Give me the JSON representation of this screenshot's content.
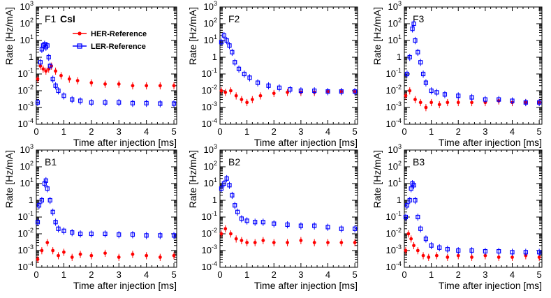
{
  "figure": {
    "x_label": "Time after injection [ms]",
    "y_label": "Rate [Hz/mA]",
    "detector_label": "CsI",
    "legend": [
      {
        "label": "HER-Reference",
        "color": "#ff0000",
        "marker": "filled-circle"
      },
      {
        "label": "LER-Reference",
        "color": "#0000ff",
        "marker": "open-square"
      }
    ],
    "x_ticks": [
      "0",
      "1",
      "2",
      "3",
      "4",
      "5"
    ],
    "y_ticks": [
      "10",
      "10",
      "10",
      "10",
      "1",
      "10",
      "10",
      "10",
      "10"
    ],
    "y_tick_exps": [
      "-4",
      "-3",
      "-2",
      "-1",
      "",
      "1",
      "2",
      "3",
      ""
    ]
  },
  "chart_data": [
    {
      "type": "scatter",
      "panel": "F1",
      "xlim": [
        0,
        5.1
      ],
      "ylim": [
        0.0001,
        1000
      ],
      "y_scale": "log",
      "series": [
        {
          "name": "HER-Reference",
          "color": "#ff0000",
          "marker": "filled-circle",
          "x": [
            0.05,
            0.15,
            0.25,
            0.35,
            0.45,
            0.55,
            0.7,
            0.9,
            1.2,
            1.5,
            2.0,
            2.5,
            3.0,
            3.5,
            4.0,
            4.5,
            5.0
          ],
          "y": [
            0.05,
            0.3,
            0.2,
            0.15,
            0.2,
            0.3,
            0.15,
            0.08,
            0.05,
            0.04,
            0.03,
            0.025,
            0.025,
            0.02,
            0.02,
            0.02,
            0.02
          ]
        },
        {
          "name": "LER-Reference",
          "color": "#0000ff",
          "marker": "open-square",
          "x": [
            0.05,
            0.15,
            0.2,
            0.25,
            0.3,
            0.35,
            0.4,
            0.45,
            0.5,
            0.6,
            0.7,
            0.8,
            1.0,
            1.3,
            1.6,
            2.0,
            2.5,
            3.0,
            3.5,
            4.0,
            4.5,
            5.0
          ],
          "y": [
            0.002,
            0.5,
            3,
            5,
            6,
            4,
            5,
            1,
            0.3,
            0.05,
            0.02,
            0.01,
            0.005,
            0.003,
            0.0025,
            0.002,
            0.002,
            0.002,
            0.0018,
            0.0018,
            0.0017,
            0.0017
          ]
        }
      ]
    },
    {
      "type": "scatter",
      "panel": "F2",
      "xlim": [
        0,
        5.1
      ],
      "ylim": [
        0.0001,
        1000
      ],
      "y_scale": "log",
      "series": [
        {
          "name": "HER-Reference",
          "color": "#ff0000",
          "marker": "filled-circle",
          "x": [
            0.05,
            0.2,
            0.4,
            0.6,
            0.8,
            1.0,
            1.2,
            1.5,
            2.0,
            2.5,
            3.0,
            3.5,
            4.0,
            4.5,
            5.0
          ],
          "y": [
            0.01,
            0.008,
            0.01,
            0.005,
            0.003,
            0.002,
            0.003,
            0.005,
            0.007,
            0.008,
            0.008,
            0.008,
            0.009,
            0.009,
            0.009
          ]
        },
        {
          "name": "LER-Reference",
          "color": "#0000ff",
          "marker": "open-square",
          "x": [
            0.05,
            0.15,
            0.25,
            0.35,
            0.45,
            0.55,
            0.7,
            0.9,
            1.1,
            1.4,
            1.8,
            2.2,
            2.6,
            3.0,
            3.5,
            4.0,
            4.5,
            5.0
          ],
          "y": [
            8,
            20,
            10,
            5,
            2,
            0.5,
            0.2,
            0.1,
            0.06,
            0.03,
            0.02,
            0.015,
            0.012,
            0.01,
            0.01,
            0.009,
            0.009,
            0.009
          ]
        }
      ]
    },
    {
      "type": "scatter",
      "panel": "F3",
      "xlim": [
        0,
        5.1
      ],
      "ylim": [
        0.0001,
        1000
      ],
      "y_scale": "log",
      "series": [
        {
          "name": "HER-Reference",
          "color": "#ff0000",
          "marker": "filled-circle",
          "x": [
            0.05,
            0.2,
            0.4,
            0.6,
            0.8,
            1.0,
            1.3,
            1.6,
            2.0,
            2.5,
            3.0,
            3.5,
            4.0,
            4.5,
            5.0
          ],
          "y": [
            0.005,
            0.01,
            0.003,
            0.002,
            0.001,
            0.002,
            0.0015,
            0.002,
            0.002,
            0.002,
            0.002,
            0.0025,
            0.002,
            0.002,
            0.002
          ]
        },
        {
          "name": "LER-Reference",
          "color": "#0000ff",
          "marker": "open-square",
          "x": [
            0.1,
            0.2,
            0.3,
            0.35,
            0.4,
            0.5,
            0.6,
            0.7,
            0.8,
            1.0,
            1.2,
            1.5,
            2.0,
            2.5,
            3.0,
            3.5,
            4.0,
            4.5,
            5.0
          ],
          "y": [
            0.1,
            1,
            50,
            100,
            10,
            2,
            0.5,
            0.1,
            0.03,
            0.01,
            0.008,
            0.006,
            0.005,
            0.004,
            0.003,
            0.003,
            0.0025,
            0.002,
            0.002
          ]
        }
      ]
    },
    {
      "type": "scatter",
      "panel": "B1",
      "xlim": [
        0,
        5.1
      ],
      "ylim": [
        0.0001,
        1000
      ],
      "y_scale": "log",
      "series": [
        {
          "name": "HER-Reference",
          "color": "#ff0000",
          "marker": "filled-circle",
          "x": [
            0.05,
            0.2,
            0.4,
            0.6,
            0.8,
            1.0,
            1.3,
            1.6,
            2.0,
            2.5,
            3.0,
            3.5,
            4.0,
            4.5,
            5.0
          ],
          "y": [
            0.0003,
            0.001,
            0.003,
            0.001,
            0.0005,
            0.0008,
            0.0004,
            0.0006,
            0.0005,
            0.0007,
            0.0004,
            0.0006,
            0.0005,
            0.0004,
            0.0005
          ]
        },
        {
          "name": "LER-Reference",
          "color": "#0000ff",
          "marker": "open-square",
          "x": [
            0.05,
            0.1,
            0.2,
            0.3,
            0.35,
            0.4,
            0.5,
            0.6,
            0.7,
            0.8,
            1.0,
            1.3,
            1.6,
            2.0,
            2.5,
            3.0,
            3.5,
            4.0,
            4.5,
            5.0
          ],
          "y": [
            0.05,
            0.5,
            1,
            10,
            15,
            5,
            1,
            0.2,
            0.05,
            0.02,
            0.015,
            0.012,
            0.01,
            0.01,
            0.01,
            0.009,
            0.009,
            0.008,
            0.008,
            0.008
          ]
        }
      ]
    },
    {
      "type": "scatter",
      "panel": "B2",
      "xlim": [
        0,
        5.1
      ],
      "ylim": [
        0.0001,
        1000
      ],
      "y_scale": "log",
      "series": [
        {
          "name": "HER-Reference",
          "color": "#ff0000",
          "marker": "filled-circle",
          "x": [
            0.05,
            0.2,
            0.4,
            0.6,
            0.8,
            1.0,
            1.3,
            1.6,
            2.0,
            2.5,
            3.0,
            3.5,
            4.0,
            4.5,
            5.0
          ],
          "y": [
            0.01,
            0.02,
            0.01,
            0.005,
            0.004,
            0.003,
            0.003,
            0.004,
            0.003,
            0.003,
            0.004,
            0.003,
            0.003,
            0.003,
            0.003
          ]
        },
        {
          "name": "LER-Reference",
          "color": "#0000ff",
          "marker": "open-square",
          "x": [
            0.05,
            0.15,
            0.25,
            0.35,
            0.45,
            0.55,
            0.65,
            0.8,
            1.0,
            1.3,
            1.6,
            2.0,
            2.5,
            3.0,
            3.5,
            4.0,
            4.5,
            5.0
          ],
          "y": [
            5,
            10,
            20,
            8,
            2,
            0.5,
            0.2,
            0.08,
            0.06,
            0.05,
            0.05,
            0.04,
            0.035,
            0.03,
            0.03,
            0.025,
            0.02,
            0.02
          ]
        }
      ]
    },
    {
      "type": "scatter",
      "panel": "B3",
      "xlim": [
        0,
        5.1
      ],
      "ylim": [
        0.0001,
        1000
      ],
      "y_scale": "log",
      "series": [
        {
          "name": "HER-Reference",
          "color": "#ff0000",
          "marker": "filled-circle",
          "x": [
            0.05,
            0.15,
            0.25,
            0.35,
            0.5,
            0.7,
            0.9,
            1.2,
            1.6,
            2.0,
            2.5,
            3.0,
            3.5,
            4.0,
            4.5,
            5.0
          ],
          "y": [
            0.001,
            0.01,
            0.005,
            0.002,
            0.001,
            0.0005,
            0.0004,
            0.0005,
            0.0004,
            0.0005,
            0.0004,
            0.0005,
            0.0004,
            0.0004,
            0.0005,
            0.0004
          ]
        },
        {
          "name": "LER-Reference",
          "color": "#0000ff",
          "marker": "open-square",
          "x": [
            0.05,
            0.1,
            0.2,
            0.25,
            0.3,
            0.35,
            0.4,
            0.5,
            0.6,
            0.8,
            1.0,
            1.3,
            1.6,
            2.0,
            2.5,
            3.0,
            3.5,
            4.0,
            4.5,
            5.0
          ],
          "y": [
            0.1,
            0.5,
            1,
            5,
            10,
            8,
            1,
            0.1,
            0.02,
            0.005,
            0.002,
            0.0015,
            0.0012,
            0.001,
            0.001,
            0.0009,
            0.0009,
            0.0008,
            0.0008,
            0.0008
          ]
        }
      ]
    }
  ]
}
